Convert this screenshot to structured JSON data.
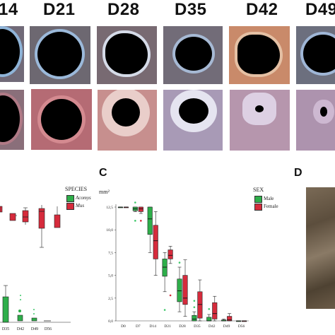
{
  "header": {
    "days": [
      "14",
      "D21",
      "D28",
      "D35",
      "D42",
      "D49"
    ]
  },
  "panels": {
    "C": "C",
    "D": "D"
  },
  "colors": {
    "acomys_green": "#2eae4a",
    "mus_red": "#d62b3c",
    "male_green": "#2eae4a",
    "female_red": "#d62b3c",
    "outlier_green": "#3ec86a",
    "outlier_red": "#d62b3c"
  },
  "panel_b_legend": {
    "title": "SPECIES",
    "items": [
      "Acomys",
      "Mus"
    ]
  },
  "panel_b_xticks": [
    "D35",
    "D42",
    "D49",
    "D56"
  ],
  "chart_data": [
    {
      "type": "box",
      "panel": "C",
      "ylabel": "mm²",
      "ylim": [
        0,
        12.5
      ],
      "yticks": [
        "0,0",
        "2,5",
        "5,0",
        "7,5",
        "10,0",
        "12,5"
      ],
      "categories": [
        "D0",
        "D7",
        "D14",
        "D21",
        "D28",
        "D35",
        "D42",
        "D49",
        "D56"
      ],
      "legend_title": "SEX",
      "series": [
        {
          "name": "Male",
          "boxes": [
            {
              "q1": 12.5,
              "median": 12.5,
              "q3": 12.5,
              "lo": 12.5,
              "hi": 12.5
            },
            {
              "q1": 12.1,
              "median": 12.3,
              "q3": 12.5,
              "lo": 12.0,
              "hi": 12.5
            },
            {
              "q1": 9.5,
              "median": 11.2,
              "q3": 12.5,
              "lo": 7.5,
              "hi": 12.5
            },
            {
              "q1": 4.9,
              "median": 5.9,
              "q3": 6.8,
              "lo": 3.2,
              "hi": 7.5
            },
            {
              "q1": 2.1,
              "median": 3.3,
              "q3": 4.6,
              "lo": 1.0,
              "hi": 5.9
            },
            {
              "q1": 0.0,
              "median": 0.2,
              "q3": 0.6,
              "lo": 0.0,
              "hi": 1.0
            },
            {
              "q1": 0.0,
              "median": 0.0,
              "q3": 0.4,
              "lo": 0.0,
              "hi": 0.7
            },
            {
              "q1": 0.0,
              "median": 0.0,
              "q3": 0.1,
              "lo": 0.0,
              "hi": 0.2
            },
            {
              "q1": 0.0,
              "median": 0.0,
              "q3": 0.0,
              "lo": 0.0,
              "hi": 0.0
            }
          ],
          "outliers": [
            [
              1,
              13.0
            ],
            [
              1,
              11.0
            ],
            [
              3,
              1.2
            ],
            [
              4,
              6.4
            ],
            [
              5,
              1.5
            ],
            [
              5,
              2.2
            ],
            [
              6,
              1.3
            ]
          ]
        },
        {
          "name": "Female",
          "boxes": [
            {
              "q1": 12.5,
              "median": 12.5,
              "q3": 12.5,
              "lo": 12.5,
              "hi": 12.5
            },
            {
              "q1": 12.0,
              "median": 12.3,
              "q3": 12.5,
              "lo": 11.8,
              "hi": 12.5
            },
            {
              "q1": 6.8,
              "median": 8.8,
              "q3": 10.5,
              "lo": 5.0,
              "hi": 12.0
            },
            {
              "q1": 6.8,
              "median": 7.2,
              "q3": 7.8,
              "lo": 6.3,
              "hi": 8.2
            },
            {
              "q1": 1.8,
              "median": 2.5,
              "q3": 5.0,
              "lo": 0.5,
              "hi": 6.7
            },
            {
              "q1": 0.3,
              "median": 1.8,
              "q3": 3.2,
              "lo": 0.0,
              "hi": 4.5
            },
            {
              "q1": 0.2,
              "median": 0.8,
              "q3": 2.0,
              "lo": 0.0,
              "hi": 2.7
            },
            {
              "q1": 0.0,
              "median": 0.1,
              "q3": 0.5,
              "lo": 0.0,
              "hi": 0.8
            },
            {
              "q1": 0.0,
              "median": 0.0,
              "q3": 0.0,
              "lo": 0.0,
              "hi": 0.0
            }
          ],
          "outliers": [
            [
              1,
              11.0
            ],
            [
              3,
              2.8
            ]
          ]
        }
      ]
    }
  ]
}
